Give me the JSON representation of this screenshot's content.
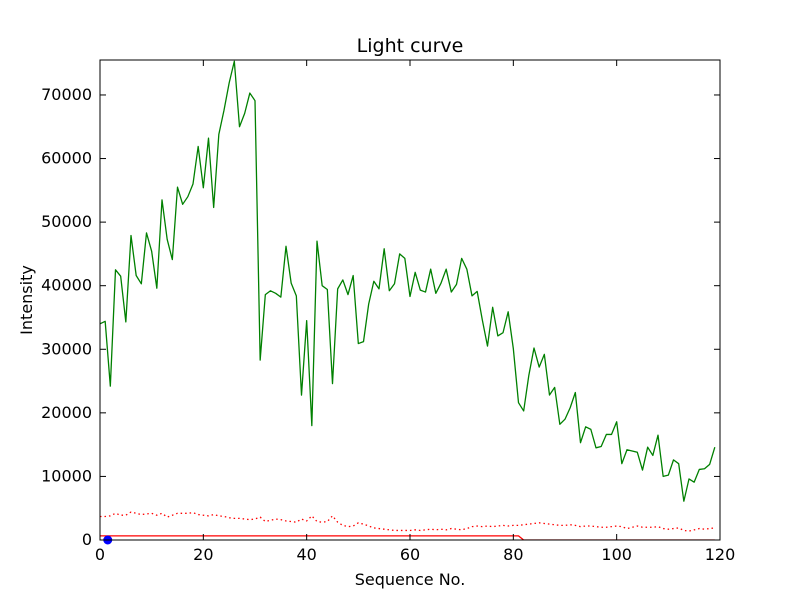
{
  "chart_data": {
    "type": "line",
    "title": "Light curve",
    "xlabel": "Sequence No.",
    "ylabel": "Intensity",
    "xlim": [
      0,
      120
    ],
    "ylim": [
      0,
      75500
    ],
    "xticks": [
      0,
      20,
      40,
      60,
      80,
      100,
      120
    ],
    "xtick_labels": [
      "0",
      "20",
      "40",
      "60",
      "80",
      "100",
      "120"
    ],
    "yticks": [
      0,
      10000,
      20000,
      30000,
      40000,
      50000,
      60000,
      70000
    ],
    "ytick_labels": [
      "0",
      "10000",
      "20000",
      "30000",
      "40000",
      "50000",
      "60000",
      "70000"
    ],
    "grid": false,
    "series": [
      {
        "color": "#008000",
        "style": "solid",
        "x": [
          0,
          1,
          2,
          3,
          4,
          5,
          6,
          7,
          8,
          9,
          10,
          11,
          12,
          13,
          14,
          15,
          16,
          17,
          18,
          19,
          20,
          21,
          22,
          23,
          24,
          25,
          26,
          27,
          28,
          29,
          30,
          31,
          32,
          33,
          34,
          35,
          36,
          37,
          38,
          39,
          40,
          41,
          42,
          43,
          44,
          45,
          46,
          47,
          48,
          49,
          50,
          51,
          52,
          53,
          54,
          55,
          56,
          57,
          58,
          59,
          60,
          61,
          62,
          63,
          64,
          65,
          66,
          67,
          68,
          69,
          70,
          71,
          72,
          73,
          74,
          75,
          76,
          77,
          78,
          79,
          80,
          81,
          82,
          83,
          84,
          85,
          86,
          87,
          88,
          89,
          90,
          91,
          92,
          93,
          94,
          95,
          96,
          97,
          98,
          99,
          100,
          101,
          102,
          103,
          104,
          105,
          106,
          107,
          108,
          109,
          110,
          111,
          112,
          113,
          114,
          115,
          116,
          117,
          118,
          119
        ],
        "values": [
          34000,
          34400,
          24200,
          42500,
          41500,
          34300,
          47900,
          41600,
          40300,
          48300,
          45400,
          39600,
          53500,
          47300,
          44100,
          55500,
          52800,
          54000,
          56000,
          61900,
          55400,
          63200,
          52300,
          63800,
          67600,
          71900,
          75300,
          65000,
          67100,
          70300,
          69100,
          28300,
          38600,
          39200,
          38800,
          38200,
          46200,
          40400,
          38400,
          22800,
          34500,
          18000,
          47000,
          40000,
          39400,
          24600,
          39500,
          40900,
          38600,
          41600,
          30900,
          31200,
          37100,
          40700,
          39500,
          45800,
          39200,
          40300,
          45000,
          44300,
          38300,
          42100,
          39300,
          39000,
          42600,
          38800,
          40400,
          42600,
          39000,
          40200,
          44300,
          42600,
          38400,
          39100,
          34600,
          30500,
          36600,
          32100,
          32600,
          35900,
          30100,
          21600,
          20300,
          25900,
          30200,
          27200,
          29200,
          22800,
          24000,
          18200,
          19000,
          20800,
          23200,
          15300,
          17800,
          17400,
          14500,
          14700,
          16600,
          16600,
          18600,
          12000,
          14200,
          14000,
          13800,
          11000,
          14600,
          13300,
          16500,
          10000,
          10200,
          12600,
          12000,
          6100,
          9600,
          9100,
          11100,
          11200,
          11900,
          14600
        ]
      },
      {
        "color": "#ff0000",
        "style": "dotted",
        "x": [
          0,
          1,
          2,
          3,
          4,
          5,
          6,
          7,
          8,
          9,
          10,
          11,
          12,
          13,
          14,
          15,
          16,
          17,
          18,
          19,
          20,
          21,
          22,
          23,
          24,
          25,
          26,
          27,
          28,
          29,
          30,
          31,
          32,
          33,
          34,
          35,
          36,
          37,
          38,
          39,
          40,
          41,
          42,
          43,
          44,
          45,
          46,
          47,
          48,
          49,
          50,
          51,
          52,
          53,
          54,
          55,
          56,
          57,
          58,
          59,
          60,
          61,
          62,
          63,
          64,
          65,
          66,
          67,
          68,
          69,
          70,
          71,
          72,
          73,
          74,
          75,
          76,
          77,
          78,
          79,
          80,
          81,
          82,
          83,
          84,
          85,
          86,
          87,
          88,
          89,
          90,
          91,
          92,
          93,
          94,
          95,
          96,
          97,
          98,
          99,
          100,
          101,
          102,
          103,
          104,
          105,
          106,
          107,
          108,
          109,
          110,
          111,
          112,
          113,
          114,
          115,
          116,
          117,
          118,
          119
        ],
        "values": [
          3700,
          3700,
          3800,
          4200,
          3900,
          3900,
          4400,
          4200,
          4000,
          4100,
          4200,
          3900,
          4200,
          3600,
          3900,
          4200,
          4200,
          4200,
          4300,
          4000,
          3900,
          3800,
          4000,
          3800,
          3700,
          3500,
          3400,
          3400,
          3300,
          3200,
          3300,
          3600,
          2900,
          3100,
          3300,
          3200,
          3000,
          2900,
          2800,
          3300,
          3000,
          3800,
          2900,
          2800,
          2900,
          3800,
          2800,
          2300,
          2100,
          2200,
          2700,
          2500,
          2200,
          1900,
          1800,
          1700,
          1600,
          1500,
          1500,
          1500,
          1500,
          1600,
          1500,
          1600,
          1700,
          1600,
          1700,
          1600,
          1800,
          1700,
          1600,
          1800,
          2100,
          2200,
          2100,
          2200,
          2100,
          2200,
          2300,
          2200,
          2300,
          2300,
          2400,
          2500,
          2600,
          2700,
          2600,
          2500,
          2400,
          2300,
          2300,
          2400,
          2300,
          2100,
          2200,
          2200,
          2100,
          2000,
          2000,
          2100,
          2200,
          2100,
          1800,
          2000,
          2200,
          2000,
          2000,
          2000,
          2100,
          1800,
          1700,
          1800,
          1900,
          1500,
          1400,
          1600,
          1800,
          1700,
          1800,
          1900
        ]
      },
      {
        "color": "#ff0000",
        "style": "solid",
        "x": [
          0,
          81,
          82,
          119
        ],
        "values": [
          650,
          650,
          0,
          0
        ]
      },
      {
        "color": "#0000ff",
        "style": "marker",
        "x": [
          1.5
        ],
        "values": [
          0
        ]
      }
    ]
  }
}
